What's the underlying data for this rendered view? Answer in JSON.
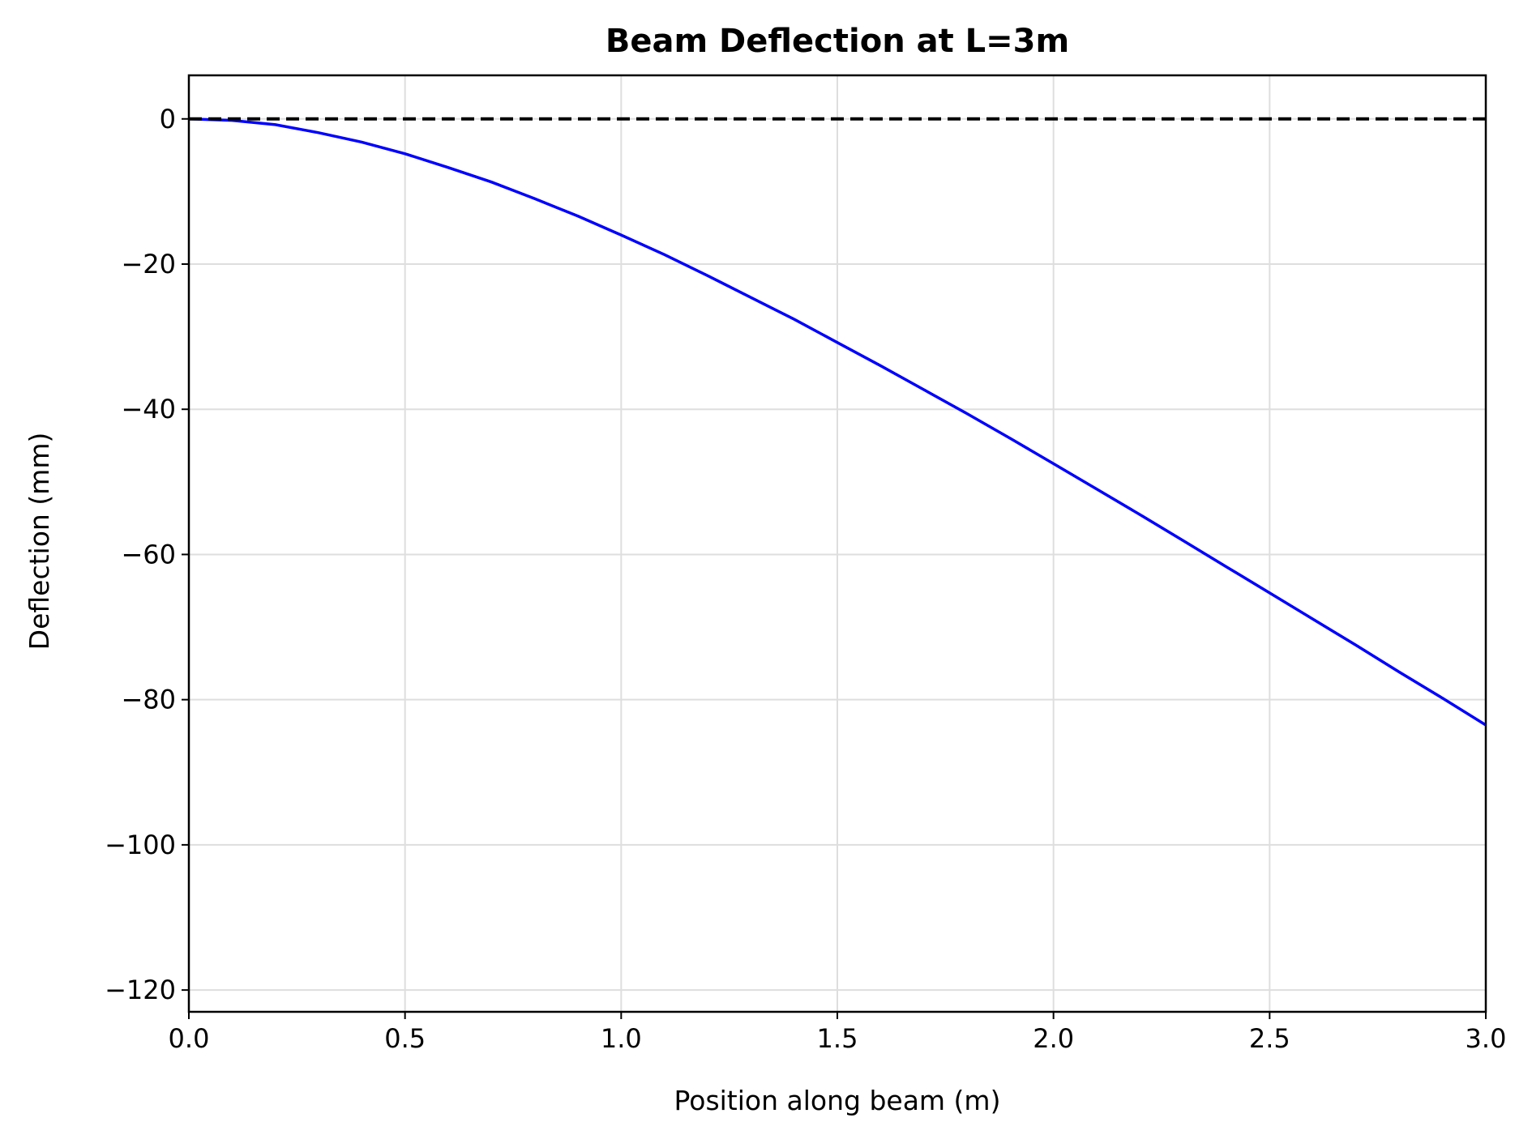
{
  "chart_data": {
    "type": "line",
    "title": "Beam Deflection at L=3m",
    "xlabel": "Position along beam (m)",
    "ylabel": "Deflection (mm)",
    "xlim": [
      0,
      3
    ],
    "ylim": [
      -123,
      6
    ],
    "xticks": [
      0.0,
      0.5,
      1.0,
      1.5,
      2.0,
      2.5,
      3.0
    ],
    "xtick_labels": [
      "0.0",
      "0.5",
      "1.0",
      "1.5",
      "2.0",
      "2.5",
      "3.0"
    ],
    "yticks": [
      0,
      -20,
      -40,
      -60,
      -80,
      -100,
      -120
    ],
    "ytick_labels": [
      "0",
      "−20",
      "−40",
      "−60",
      "−80",
      "−100",
      "−120"
    ],
    "grid": true,
    "series": [
      {
        "color": "#0000ff",
        "style": "solid",
        "x": [
          0,
          0.1,
          0.2,
          0.3,
          0.4,
          0.5,
          0.6,
          0.7,
          0.8,
          0.9,
          1.0,
          1.1,
          1.2,
          1.3,
          1.4,
          1.5,
          1.6,
          1.7,
          1.8,
          1.9,
          2.0,
          2.1,
          2.2,
          2.3,
          2.4,
          2.5,
          2.6,
          2.7,
          2.8,
          2.9,
          3.0
        ],
        "y": [
          0,
          -0.2,
          -0.8,
          -1.9,
          -3.2,
          -4.8,
          -6.7,
          -8.7,
          -11.0,
          -13.4,
          -16.0,
          -18.7,
          -21.6,
          -24.6,
          -27.6,
          -30.8,
          -34.0,
          -37.3,
          -40.6,
          -44.0,
          -47.5,
          -51.0,
          -54.5,
          -58.1,
          -61.7,
          -65.3,
          -68.9,
          -72.5,
          -76.2,
          -79.8,
          -83.5
        ]
      },
      {
        "color": "#000000",
        "style": "dashed",
        "x": [
          0,
          3
        ],
        "y": [
          0,
          0
        ]
      }
    ]
  }
}
